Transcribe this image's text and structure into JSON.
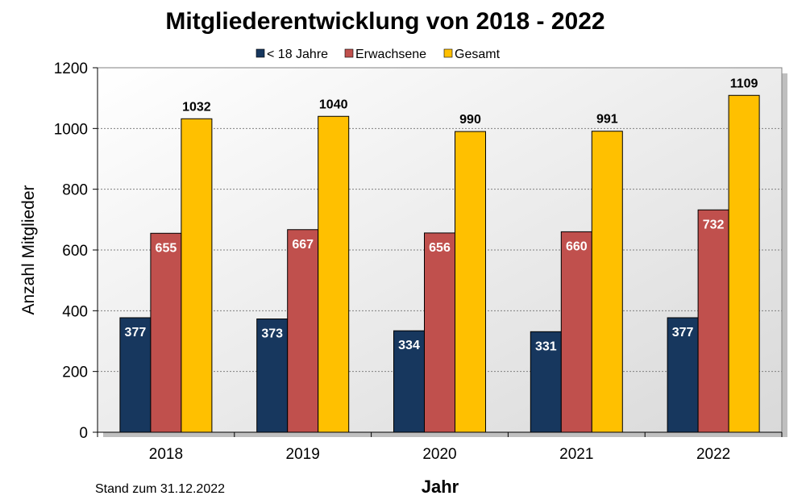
{
  "chart_data": {
    "type": "bar",
    "title": "Mitgliederentwicklung von 2018 - 2022",
    "xlabel": "Jahr",
    "ylabel": "Anzahl Mitglieder",
    "categories": [
      "2018",
      "2019",
      "2020",
      "2021",
      "2022"
    ],
    "ylim": [
      0,
      1200
    ],
    "yticks": [
      "0",
      "200",
      "400",
      "600",
      "800",
      "1000",
      "1200"
    ],
    "grid": true,
    "legend_position": "top",
    "series": [
      {
        "name": "< 18 Jahre",
        "color": "#17375E",
        "values": [
          377,
          373,
          334,
          331,
          377
        ]
      },
      {
        "name": "Erwachsene",
        "color": "#C0504D",
        "values": [
          655,
          667,
          656,
          660,
          732
        ]
      },
      {
        "name": "Gesamt",
        "color": "#FFC000",
        "values": [
          1032,
          1040,
          990,
          991,
          1109
        ]
      }
    ]
  },
  "note": "Stand zum 31.12.2022"
}
